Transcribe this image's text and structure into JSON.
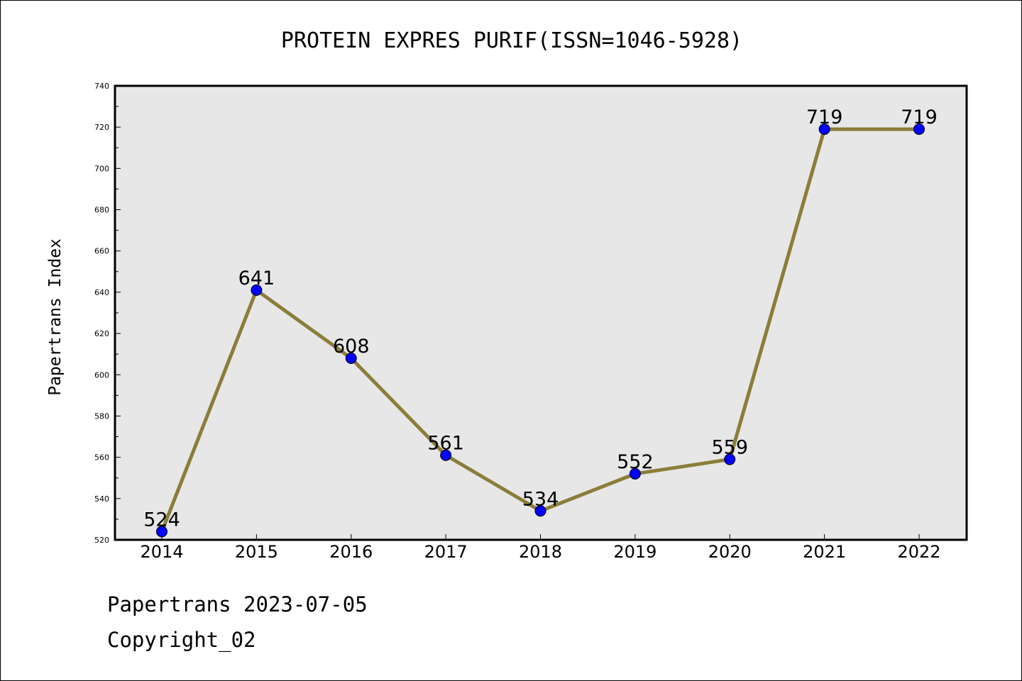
{
  "chart_data": {
    "type": "line",
    "title": "PROTEIN EXPRES PURIF(ISSN=1046-5928)",
    "xlabel": "",
    "ylabel": "Papertrans Index",
    "categories": [
      "2014",
      "2015",
      "2016",
      "2017",
      "2018",
      "2019",
      "2020",
      "2021",
      "2022"
    ],
    "values": [
      524,
      641,
      608,
      561,
      534,
      552,
      559,
      719,
      719
    ],
    "data_labels": [
      "524",
      "641",
      "608",
      "561",
      "534",
      "552",
      "559",
      "719",
      "719"
    ],
    "ylim": [
      520,
      740
    ],
    "yticks": [
      520,
      540,
      560,
      580,
      600,
      620,
      640,
      660,
      680,
      700,
      720,
      740
    ],
    "grid": false,
    "background_color": "#e7e7e7",
    "line_color": "#8b7d3a",
    "marker_color": "#0000ff"
  },
  "footer": {
    "line1": "Papertrans 2023-07-05",
    "line2": "Copyright_02"
  }
}
